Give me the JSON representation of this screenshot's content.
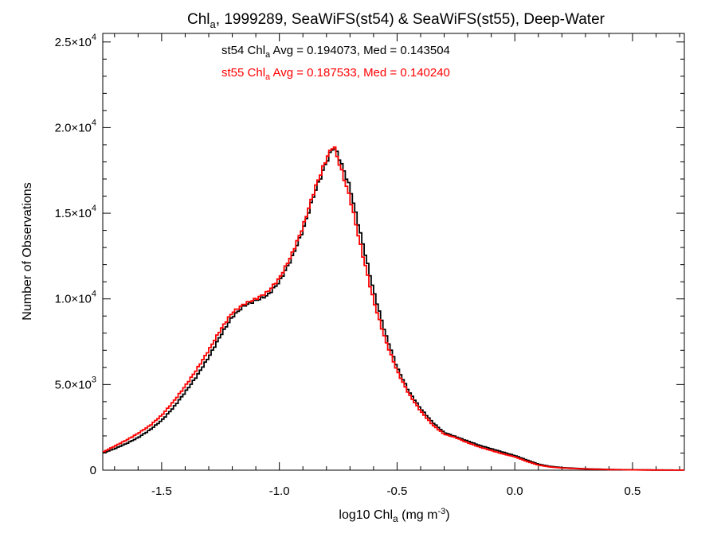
{
  "chart_data": {
    "type": "histogram-step",
    "title": {
      "pre": "Chl",
      "sub": "a",
      "post": ", 1999289, SeaWiFS(st54) & SeaWiFS(st55), Deep-Water"
    },
    "xlabel": {
      "pre": "log10 Chl",
      "sub": "a",
      "mid": " (mg m",
      "sup": "-3",
      "post": ")"
    },
    "ylabel": "Number of Observations",
    "xlim": [
      -1.75,
      0.72
    ],
    "ylim": [
      0,
      25500
    ],
    "x_ticks": [
      {
        "value": -1.5,
        "label": "-1.5"
      },
      {
        "value": -1.0,
        "label": "-1.0"
      },
      {
        "value": -0.5,
        "label": "-0.5"
      },
      {
        "value": 0.0,
        "label": "0.0"
      },
      {
        "value": 0.5,
        "label": "0.5"
      }
    ],
    "y_ticks": [
      {
        "value": 0,
        "mant": "0",
        "exp": ""
      },
      {
        "value": 5000,
        "mant": "5.0×10",
        "exp": "3"
      },
      {
        "value": 10000,
        "mant": "1.0×10",
        "exp": "4"
      },
      {
        "value": 15000,
        "mant": "1.5×10",
        "exp": "4"
      },
      {
        "value": 20000,
        "mant": "2.0×10",
        "exp": "4"
      },
      {
        "value": 25000,
        "mant": "2.5×10",
        "exp": "4"
      }
    ],
    "legend": [
      {
        "pre": "st54 Chl",
        "sub": "a",
        "post": " Avg = 0.194073, Med = 0.143504",
        "color": "#000000"
      },
      {
        "pre": "st55 Chl",
        "sub": "a",
        "post": " Avg = 0.187533, Med = 0.140240",
        "color": "#ff0000"
      }
    ],
    "bin_width": 0.01,
    "series": [
      {
        "name": "st54",
        "color": "#000000",
        "points": [
          [
            -1.75,
            1000
          ],
          [
            -1.7,
            1250
          ],
          [
            -1.65,
            1550
          ],
          [
            -1.6,
            1900
          ],
          [
            -1.55,
            2350
          ],
          [
            -1.5,
            2900
          ],
          [
            -1.45,
            3650
          ],
          [
            -1.4,
            4550
          ],
          [
            -1.35,
            5500
          ],
          [
            -1.3,
            6600
          ],
          [
            -1.25,
            7850
          ],
          [
            -1.2,
            8950
          ],
          [
            -1.15,
            9600
          ],
          [
            -1.1,
            9900
          ],
          [
            -1.05,
            10200
          ],
          [
            -1.0,
            11000
          ],
          [
            -0.95,
            12300
          ],
          [
            -0.9,
            14000
          ],
          [
            -0.85,
            16200
          ],
          [
            -0.8,
            18000
          ],
          [
            -0.77,
            18900
          ],
          [
            -0.75,
            18400
          ],
          [
            -0.7,
            16500
          ],
          [
            -0.65,
            13500
          ],
          [
            -0.6,
            10500
          ],
          [
            -0.55,
            8000
          ],
          [
            -0.5,
            6000
          ],
          [
            -0.45,
            4600
          ],
          [
            -0.4,
            3600
          ],
          [
            -0.35,
            2800
          ],
          [
            -0.3,
            2200
          ],
          [
            -0.25,
            1950
          ],
          [
            -0.2,
            1700
          ],
          [
            -0.15,
            1450
          ],
          [
            -0.1,
            1250
          ],
          [
            -0.05,
            1050
          ],
          [
            0.0,
            850
          ],
          [
            0.05,
            600
          ],
          [
            0.1,
            350
          ],
          [
            0.15,
            220
          ],
          [
            0.2,
            150
          ],
          [
            0.3,
            80
          ],
          [
            0.4,
            40
          ],
          [
            0.5,
            20
          ],
          [
            0.6,
            10
          ],
          [
            0.72,
            5
          ]
        ]
      },
      {
        "name": "st55",
        "color": "#ff0000",
        "points": [
          [
            -1.75,
            1050
          ],
          [
            -1.7,
            1400
          ],
          [
            -1.65,
            1750
          ],
          [
            -1.6,
            2150
          ],
          [
            -1.55,
            2600
          ],
          [
            -1.5,
            3200
          ],
          [
            -1.45,
            4000
          ],
          [
            -1.4,
            4900
          ],
          [
            -1.35,
            5900
          ],
          [
            -1.3,
            7000
          ],
          [
            -1.25,
            8200
          ],
          [
            -1.2,
            9200
          ],
          [
            -1.15,
            9700
          ],
          [
            -1.1,
            10000
          ],
          [
            -1.05,
            10400
          ],
          [
            -1.0,
            11200
          ],
          [
            -0.95,
            12500
          ],
          [
            -0.9,
            14200
          ],
          [
            -0.85,
            16400
          ],
          [
            -0.8,
            18200
          ],
          [
            -0.77,
            19000
          ],
          [
            -0.75,
            18100
          ],
          [
            -0.7,
            15900
          ],
          [
            -0.65,
            12800
          ],
          [
            -0.6,
            9900
          ],
          [
            -0.55,
            7600
          ],
          [
            -0.5,
            5800
          ],
          [
            -0.45,
            4450
          ],
          [
            -0.4,
            3450
          ],
          [
            -0.35,
            2650
          ],
          [
            -0.3,
            2100
          ],
          [
            -0.25,
            1900
          ],
          [
            -0.2,
            1600
          ],
          [
            -0.15,
            1350
          ],
          [
            -0.1,
            1150
          ],
          [
            -0.05,
            950
          ],
          [
            0.0,
            780
          ],
          [
            0.05,
            520
          ],
          [
            0.1,
            300
          ],
          [
            0.15,
            190
          ],
          [
            0.2,
            130
          ],
          [
            0.3,
            70
          ],
          [
            0.4,
            35
          ],
          [
            0.5,
            18
          ],
          [
            0.6,
            8
          ],
          [
            0.72,
            4
          ]
        ]
      }
    ]
  }
}
